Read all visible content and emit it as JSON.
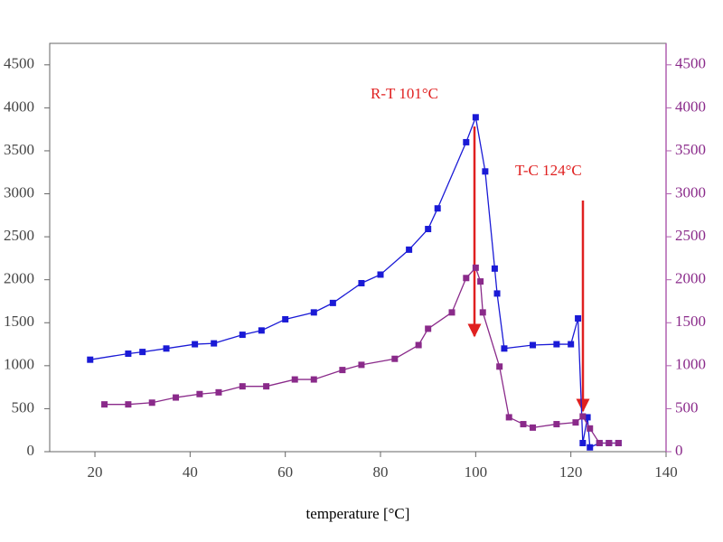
{
  "chart_data": {
    "type": "line",
    "xlabel": "temperature [°C]",
    "annotations": [
      "R-T  101°C",
      "T-C  124°C"
    ],
    "xlim": [
      10.5,
      140
    ],
    "xticks": [
      20,
      40,
      60,
      80,
      100,
      120,
      140
    ],
    "ylim": [
      0,
      4750
    ],
    "yticks": [
      0,
      500,
      1000,
      1500,
      2000,
      2500,
      3000,
      3500,
      4000,
      4500
    ],
    "y2lim": [
      0,
      4750
    ],
    "y2ticks": [
      0,
      500,
      1000,
      1500,
      2000,
      2500,
      3000,
      3500,
      4000,
      4500
    ],
    "series": [
      {
        "name": "R-T",
        "color": "#1a1ad6",
        "x": [
          19,
          27,
          30,
          35,
          41,
          45,
          51,
          55,
          60,
          66,
          70,
          76,
          80,
          86,
          90,
          92,
          98,
          100,
          102,
          104,
          104.5,
          106,
          112,
          117,
          120,
          121.5,
          122.5,
          123.5,
          124,
          126,
          128,
          130
        ],
        "values": [
          1070,
          1140,
          1160,
          1200,
          1250,
          1260,
          1360,
          1410,
          1540,
          1620,
          1730,
          1960,
          2060,
          2350,
          2590,
          2830,
          3600,
          3890,
          3260,
          2130,
          1840,
          1200,
          1240,
          1250,
          1250,
          1550,
          100,
          400,
          50,
          100,
          100,
          100
        ]
      },
      {
        "name": "T-C",
        "color": "#8a2a8a",
        "axis": "y2",
        "x": [
          22,
          27,
          32,
          37,
          42,
          46,
          51,
          56,
          62,
          66,
          72,
          76,
          83,
          88,
          90,
          95,
          98,
          100,
          101,
          101.5,
          105,
          107,
          110,
          112,
          117,
          121,
          122.5,
          124,
          126,
          128,
          130
        ],
        "values": [
          550,
          550,
          570,
          630,
          670,
          690,
          760,
          760,
          840,
          840,
          950,
          1010,
          1080,
          1240,
          1430,
          1620,
          2020,
          2140,
          1980,
          1620,
          990,
          400,
          320,
          280,
          320,
          340,
          410,
          270,
          100,
          100,
          100
        ]
      }
    ]
  }
}
